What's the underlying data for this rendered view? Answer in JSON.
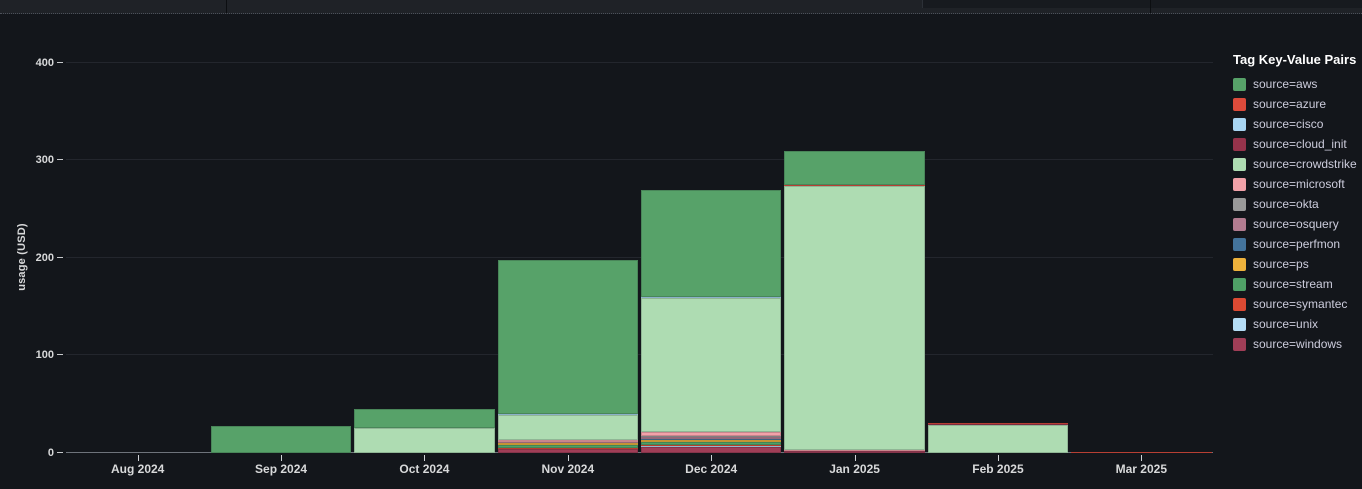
{
  "panel": {
    "legend_title": "Tag Key-Value Pairs"
  },
  "chart_data": {
    "type": "bar",
    "stacked": true,
    "title": "",
    "xlabel": "",
    "ylabel": "usage (USD)",
    "ylim": [
      0,
      422
    ],
    "yticks": [
      0,
      100,
      200,
      300,
      400
    ],
    "grid": true,
    "legend_title": "Tag Key-Value Pairs",
    "legend_position": "right",
    "categories": [
      "Aug 2024",
      "Sep 2024",
      "Oct 2024",
      "Nov 2024",
      "Dec 2024",
      "Jan 2025",
      "Feb 2025",
      "Mar 2025"
    ],
    "series": [
      {
        "name": "aws",
        "label": "source=aws",
        "color": "#57a269",
        "values": [
          0,
          27.5,
          19.5,
          158,
          109,
          35,
          0,
          0
        ]
      },
      {
        "name": "azure",
        "label": "source=azure",
        "color": "#dd4b3b",
        "values": [
          0,
          0,
          0,
          0.5,
          0.8,
          0.5,
          1,
          1.2
        ]
      },
      {
        "name": "cisco",
        "label": "source=cisco",
        "color": "#a8d5f2",
        "values": [
          0,
          0,
          0,
          0.3,
          0.3,
          0,
          0,
          0
        ]
      },
      {
        "name": "cloud_init",
        "label": "source=cloud_init",
        "color": "#96334b",
        "values": [
          0,
          0,
          0,
          0.5,
          0.7,
          0.5,
          0.5,
          0
        ]
      },
      {
        "name": "crowdstrike",
        "label": "source=crowdstrike",
        "color": "#aedcb2",
        "values": [
          0,
          0,
          25.5,
          26,
          137,
          270,
          29,
          0
        ]
      },
      {
        "name": "microsoft",
        "label": "source=microsoft",
        "color": "#f2a2a9",
        "values": [
          0,
          0,
          0,
          1.2,
          4,
          0.8,
          0,
          0
        ]
      },
      {
        "name": "okta",
        "label": "source=okta",
        "color": "#999999",
        "values": [
          0,
          0,
          0,
          0.5,
          1.5,
          0,
          0,
          0
        ]
      },
      {
        "name": "osquery",
        "label": "source=osquery",
        "color": "#b27c90",
        "values": [
          0,
          0,
          0,
          0.7,
          1.5,
          0,
          0,
          0
        ]
      },
      {
        "name": "perfmon",
        "label": "source=perfmon",
        "color": "#44749c",
        "values": [
          0,
          0,
          0,
          0.5,
          1,
          0,
          0,
          0
        ]
      },
      {
        "name": "ps",
        "label": "source=ps",
        "color": "#eeb23c",
        "values": [
          0,
          0,
          0,
          1.8,
          2,
          0,
          0,
          0
        ]
      },
      {
        "name": "stream",
        "label": "source=stream",
        "color": "#4fa066",
        "values": [
          0,
          0,
          0,
          3,
          3.5,
          0.3,
          0,
          0
        ]
      },
      {
        "name": "symantec",
        "label": "source=symantec",
        "color": "#dc4a33",
        "values": [
          0,
          0,
          0,
          0.7,
          1,
          0.3,
          0,
          0
        ]
      },
      {
        "name": "unix",
        "label": "source=unix",
        "color": "#b4dcf5",
        "values": [
          0,
          0,
          0,
          0.5,
          1,
          0,
          0,
          0
        ]
      },
      {
        "name": "windows",
        "label": "source=windows",
        "color": "#a03e57",
        "values": [
          0,
          0,
          0,
          4,
          6,
          2,
          0,
          0
        ]
      }
    ],
    "stack_order_bottom_to_top": [
      "windows",
      "unix",
      "symantec",
      "stream",
      "ps",
      "perfmon",
      "osquery",
      "okta",
      "microsoft",
      "crowdstrike",
      "cloud_init",
      "cisco",
      "azure",
      "aws"
    ]
  }
}
